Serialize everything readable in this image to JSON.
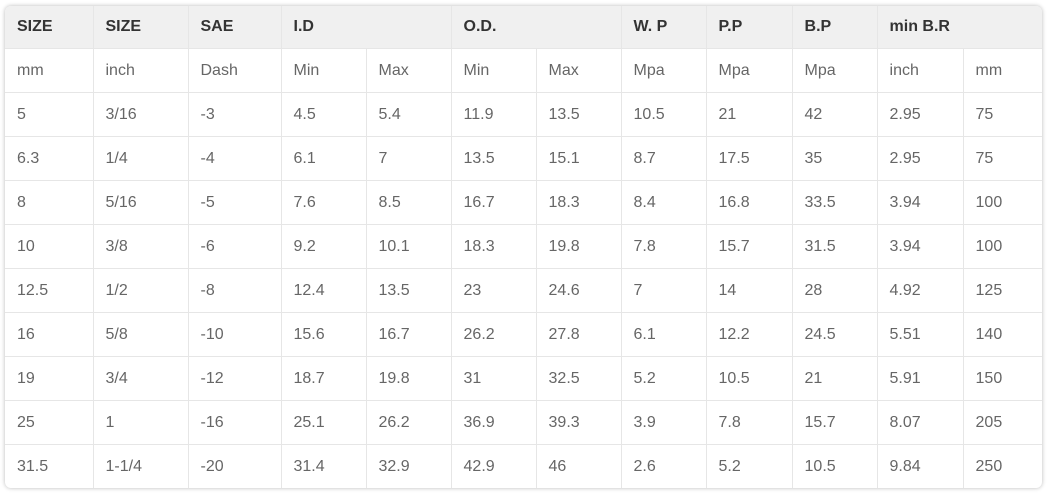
{
  "table": {
    "headers": [
      "SIZE",
      "SIZE",
      "SAE",
      "I.D",
      "O.D.",
      "W. P",
      "P.P",
      "B.P",
      "min B.R"
    ],
    "units": [
      "mm",
      "inch",
      "Dash",
      "Min",
      "Max",
      "Min",
      "Max",
      "Mpa",
      "Mpa",
      "Mpa",
      "inch",
      "mm"
    ],
    "rows": [
      [
        "5",
        "3/16",
        "-3",
        "4.5",
        "5.4",
        "11.9",
        "13.5",
        "10.5",
        "21",
        "42",
        "2.95",
        "75"
      ],
      [
        "6.3",
        "1/4",
        "-4",
        "6.1",
        "7",
        "13.5",
        "15.1",
        "8.7",
        "17.5",
        "35",
        "2.95",
        "75"
      ],
      [
        "8",
        "5/16",
        "-5",
        "7.6",
        "8.5",
        "16.7",
        "18.3",
        "8.4",
        "16.8",
        "33.5",
        "3.94",
        "100"
      ],
      [
        "10",
        "3/8",
        "-6",
        "9.2",
        "10.1",
        "18.3",
        "19.8",
        "7.8",
        "15.7",
        "31.5",
        "3.94",
        "100"
      ],
      [
        "12.5",
        "1/2",
        "-8",
        "12.4",
        "13.5",
        "23",
        "24.6",
        "7",
        "14",
        "28",
        "4.92",
        "125"
      ],
      [
        "16",
        "5/8",
        "-10",
        "15.6",
        "16.7",
        "26.2",
        "27.8",
        "6.1",
        "12.2",
        "24.5",
        "5.51",
        "140"
      ],
      [
        "19",
        "3/4",
        "-12",
        "18.7",
        "19.8",
        "31",
        "32.5",
        "5.2",
        "10.5",
        "21",
        "5.91",
        "150"
      ],
      [
        "25",
        "1",
        "-16",
        "25.1",
        "26.2",
        "36.9",
        "39.3",
        "3.9",
        "7.8",
        "15.7",
        "8.07",
        "205"
      ],
      [
        "31.5",
        "1-1/4",
        "-20",
        "31.4",
        "32.9",
        "42.9",
        "46",
        "2.6",
        "5.2",
        "10.5",
        "9.84",
        "250"
      ]
    ]
  }
}
